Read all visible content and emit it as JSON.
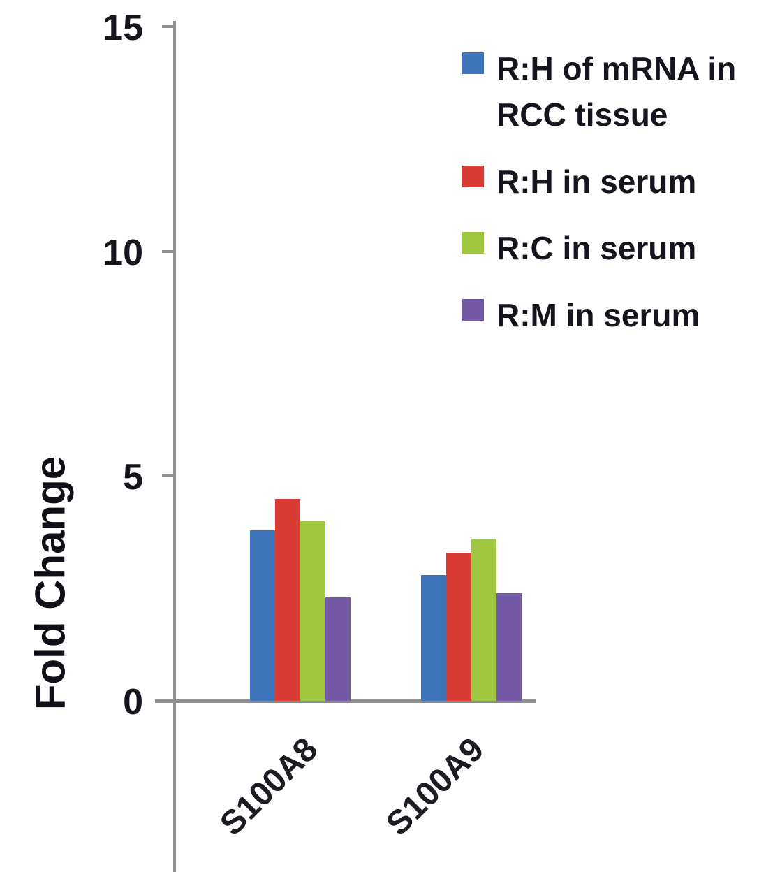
{
  "chart_data": {
    "type": "bar",
    "title": "",
    "xlabel": "",
    "ylabel": "Fold Change",
    "categories": [
      "S100A8",
      "S100A9"
    ],
    "series": [
      {
        "name": "R:H of mRNA in RCC tissue",
        "legend_lines": [
          "R:H of mRNA in",
          "RCC tissue"
        ],
        "color": "#3E74B9",
        "values": [
          3.8,
          2.8
        ]
      },
      {
        "name": "R:H in serum",
        "legend_lines": [
          "R:H in serum"
        ],
        "color": "#D93B35",
        "values": [
          4.5,
          3.3
        ]
      },
      {
        "name": "R:C in serum",
        "legend_lines": [
          "R:C in serum"
        ],
        "color": "#9EC63F",
        "values": [
          4.0,
          3.6
        ]
      },
      {
        "name": "R:M in serum",
        "legend_lines": [
          "R:M in serum"
        ],
        "color": "#7459A7",
        "values": [
          2.3,
          2.4
        ]
      }
    ],
    "ylim": [
      0,
      15
    ],
    "yticks": [
      15,
      10,
      5,
      0
    ],
    "grid": false,
    "legend_position": "upper-right"
  },
  "colors": {
    "axis": "#8F8F8F",
    "text": "#15151D"
  }
}
